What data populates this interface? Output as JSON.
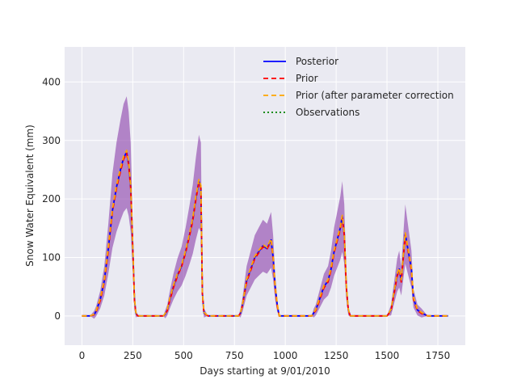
{
  "chart_data": {
    "type": "line",
    "title": "",
    "xlabel": "Days starting at 9/01/2010",
    "ylabel": "Snow Water Equivalent (mm)",
    "xlim": [
      -85,
      1885
    ],
    "ylim": [
      -50,
      460
    ],
    "xticks": [
      0,
      250,
      500,
      750,
      1000,
      1250,
      1500,
      1750
    ],
    "yticks": [
      0,
      100,
      200,
      300,
      400
    ],
    "grid": true,
    "legend_position": "top-right",
    "series": [
      {
        "name": "Posterior",
        "color": "#0000ff",
        "style": "solid",
        "x": [
          0,
          40,
          60,
          70,
          90,
          110,
          130,
          150,
          170,
          190,
          205,
          220,
          230,
          240,
          250,
          258,
          265,
          275,
          400,
          410,
          420,
          430,
          450,
          470,
          490,
          510,
          530,
          545,
          560,
          575,
          585,
          592,
          600,
          620,
          770,
          780,
          790,
          810,
          830,
          850,
          870,
          890,
          910,
          930,
          940,
          950,
          960,
          970,
          1130,
          1140,
          1150,
          1170,
          1190,
          1210,
          1225,
          1240,
          1255,
          1270,
          1280,
          1290,
          1300,
          1310,
          1320,
          1500,
          1520,
          1535,
          1550,
          1560,
          1570,
          1580,
          1590,
          1600,
          1610,
          1620,
          1630,
          1650,
          1670,
          1700,
          1800
        ],
        "y": [
          0,
          0,
          2,
          8,
          28,
          60,
          115,
          180,
          220,
          250,
          270,
          280,
          260,
          220,
          120,
          30,
          5,
          0,
          0,
          3,
          10,
          25,
          50,
          70,
          85,
          110,
          140,
          165,
          200,
          230,
          220,
          40,
          5,
          0,
          0,
          5,
          20,
          60,
          80,
          100,
          110,
          120,
          115,
          130,
          100,
          50,
          20,
          0,
          0,
          5,
          10,
          30,
          50,
          60,
          80,
          110,
          130,
          150,
          170,
          140,
          50,
          10,
          0,
          0,
          10,
          40,
          70,
          80,
          60,
          100,
          140,
          120,
          100,
          80,
          30,
          10,
          5,
          0,
          0
        ]
      },
      {
        "name": "Prior",
        "color": "#ff0000",
        "style": "dashed",
        "x": [
          0,
          40,
          60,
          70,
          90,
          110,
          130,
          150,
          170,
          190,
          205,
          220,
          230,
          240,
          250,
          258,
          265,
          275,
          400,
          410,
          420,
          430,
          450,
          470,
          490,
          510,
          530,
          545,
          560,
          575,
          585,
          592,
          600,
          620,
          770,
          780,
          790,
          810,
          830,
          850,
          870,
          890,
          910,
          930,
          940,
          950,
          960,
          970,
          1130,
          1140,
          1150,
          1170,
          1190,
          1210,
          1225,
          1240,
          1255,
          1270,
          1280,
          1290,
          1300,
          1310,
          1320,
          1500,
          1520,
          1535,
          1550,
          1560,
          1570,
          1580,
          1590,
          1600,
          1610,
          1620,
          1630,
          1650,
          1670,
          1700,
          1800
        ],
        "y": [
          0,
          0,
          2,
          7,
          26,
          58,
          112,
          178,
          218,
          247,
          268,
          278,
          258,
          218,
          118,
          28,
          4,
          0,
          0,
          3,
          9,
          24,
          48,
          68,
          84,
          108,
          138,
          162,
          198,
          228,
          218,
          38,
          4,
          0,
          0,
          5,
          19,
          58,
          78,
          98,
          108,
          118,
          114,
          128,
          98,
          48,
          18,
          0,
          0,
          5,
          9,
          28,
          48,
          58,
          78,
          108,
          128,
          148,
          168,
          138,
          48,
          9,
          0,
          0,
          9,
          38,
          68,
          78,
          58,
          98,
          138,
          118,
          98,
          78,
          28,
          9,
          4,
          0,
          0
        ]
      },
      {
        "name": "Prior (after parameter correction",
        "color": "#ffa500",
        "style": "dashed",
        "x": [
          0,
          40,
          60,
          70,
          90,
          110,
          130,
          150,
          170,
          190,
          205,
          220,
          230,
          240,
          250,
          258,
          265,
          275,
          400,
          410,
          420,
          430,
          450,
          470,
          490,
          510,
          530,
          545,
          560,
          575,
          585,
          592,
          600,
          620,
          770,
          780,
          790,
          810,
          830,
          850,
          870,
          890,
          910,
          930,
          940,
          950,
          960,
          970,
          1130,
          1140,
          1150,
          1170,
          1190,
          1210,
          1225,
          1240,
          1255,
          1270,
          1280,
          1290,
          1300,
          1310,
          1320,
          1500,
          1520,
          1535,
          1550,
          1560,
          1570,
          1580,
          1590,
          1600,
          1610,
          1620,
          1630,
          1650,
          1670,
          1700,
          1800
        ],
        "y": [
          0,
          0,
          3,
          9,
          30,
          62,
          118,
          183,
          223,
          253,
          273,
          283,
          263,
          223,
          123,
          32,
          6,
          0,
          0,
          4,
          11,
          27,
          52,
          72,
          87,
          112,
          142,
          167,
          203,
          233,
          223,
          42,
          6,
          0,
          0,
          6,
          21,
          62,
          82,
          102,
          112,
          122,
          117,
          132,
          102,
          52,
          22,
          0,
          0,
          6,
          11,
          32,
          52,
          62,
          82,
          112,
          132,
          152,
          172,
          142,
          52,
          11,
          0,
          0,
          11,
          42,
          72,
          82,
          62,
          102,
          142,
          122,
          102,
          82,
          32,
          11,
          6,
          0,
          0
        ]
      },
      {
        "name": "Observations",
        "color": "#008000",
        "style": "dotted",
        "x": [],
        "y": []
      }
    ]
  }
}
